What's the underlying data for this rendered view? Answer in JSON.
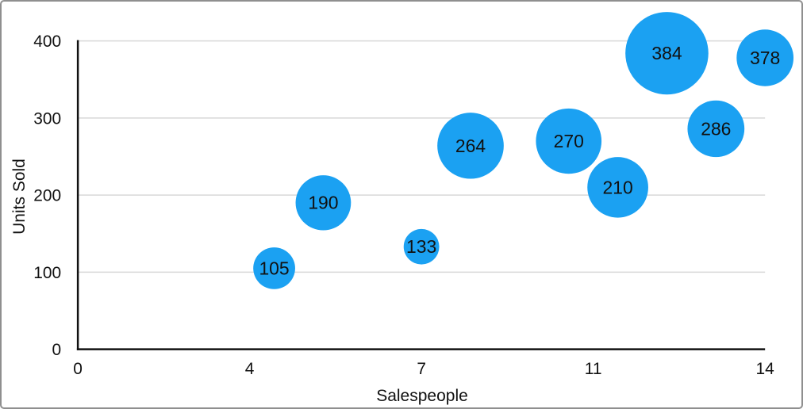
{
  "chart_data": {
    "type": "bubble",
    "title": "",
    "xlabel": "Salespeople",
    "ylabel": "Units Sold",
    "xlim": [
      0,
      14
    ],
    "ylim": [
      0,
      400
    ],
    "x_ticks": {
      "values": [
        0,
        3.5,
        7,
        10.5,
        14
      ],
      "labels": [
        "0",
        "4",
        "7",
        "11",
        "14"
      ]
    },
    "y_ticks": {
      "values": [
        0,
        100,
        200,
        300,
        400
      ],
      "labels": [
        "0",
        "100",
        "200",
        "300",
        "400"
      ]
    },
    "grid": "horizontal",
    "legend": "none",
    "points": [
      {
        "x": 4,
        "y": 105,
        "label": "105",
        "radius_px": 26.5
      },
      {
        "x": 5,
        "y": 190,
        "label": "190",
        "radius_px": 35
      },
      {
        "x": 7,
        "y": 133,
        "label": "133",
        "radius_px": 22.5
      },
      {
        "x": 8,
        "y": 264,
        "label": "264",
        "radius_px": 42
      },
      {
        "x": 10,
        "y": 270,
        "label": "270",
        "radius_px": 41.5
      },
      {
        "x": 11,
        "y": 210,
        "label": "210",
        "radius_px": 38.5
      },
      {
        "x": 12,
        "y": 384,
        "label": "384",
        "radius_px": 52.5
      },
      {
        "x": 13,
        "y": 286,
        "label": "286",
        "radius_px": 36
      },
      {
        "x": 14,
        "y": 378,
        "label": "378",
        "radius_px": 36
      }
    ],
    "colors": {
      "bubble_fill": "#1BA1F2",
      "gridline": "#d8d8d8",
      "axis_line": "#111111",
      "text": "#111111",
      "frame_border": "#8f8f8f",
      "background": "#ffffff"
    }
  }
}
